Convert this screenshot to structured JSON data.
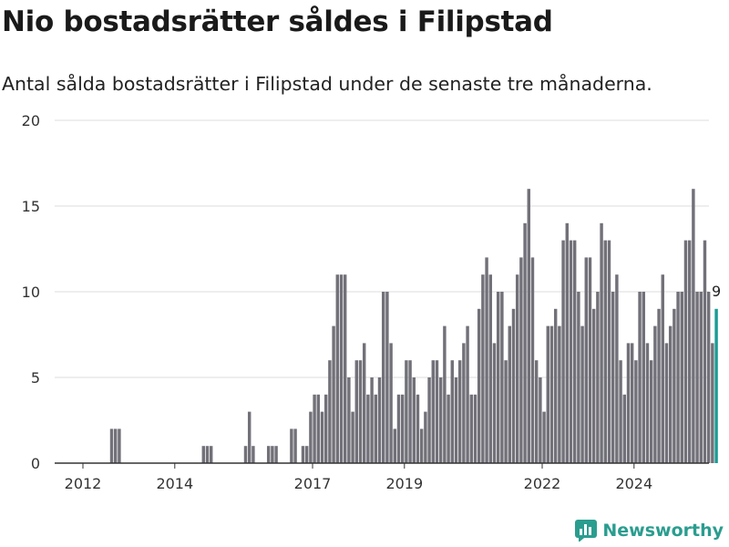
{
  "title": "Nio bostadsrätter såldes i Filipstad",
  "subtitle": "Antal sålda bostadsrätter i Filipstad under de senaste tre månaderna.",
  "brand": "Newsworthy",
  "colors": {
    "bar": "#727179",
    "highlight": "#1a9c95",
    "grid": "#dddddd",
    "axis": "#333333",
    "brand": "#2a9d8f"
  },
  "chart_data": {
    "type": "bar",
    "ylim": [
      0,
      20
    ],
    "y_ticks": [
      "0",
      "5",
      "10",
      "15",
      "20"
    ],
    "x_ticks": [
      "2012",
      "2014",
      "2017",
      "2019",
      "2022",
      "2024"
    ],
    "x_tick_positions": [
      2012,
      2014,
      2017,
      2019,
      2022,
      2024
    ],
    "x_start": 2011.6667,
    "period_length": 0.08333,
    "grid": true,
    "last_value_label": "9",
    "values": [
      0,
      0,
      0,
      0,
      0,
      0,
      0,
      0,
      0,
      0,
      0,
      2,
      2,
      2,
      0,
      0,
      0,
      0,
      0,
      0,
      0,
      0,
      0,
      0,
      0,
      0,
      0,
      0,
      0,
      0,
      0,
      0,
      0,
      0,
      0,
      1,
      1,
      1,
      0,
      0,
      0,
      0,
      0,
      0,
      0,
      0,
      1,
      3,
      1,
      0,
      0,
      0,
      1,
      1,
      1,
      0,
      0,
      0,
      2,
      2,
      0,
      1,
      1,
      3,
      4,
      4,
      3,
      4,
      6,
      8,
      11,
      11,
      11,
      5,
      3,
      6,
      6,
      7,
      4,
      5,
      4,
      5,
      10,
      10,
      7,
      2,
      4,
      4,
      6,
      6,
      5,
      4,
      2,
      3,
      5,
      6,
      6,
      5,
      8,
      4,
      6,
      5,
      6,
      7,
      8,
      4,
      4,
      9,
      11,
      12,
      11,
      7,
      10,
      10,
      6,
      8,
      9,
      11,
      12,
      14,
      16,
      12,
      6,
      5,
      3,
      8,
      8,
      9,
      8,
      13,
      14,
      13,
      13,
      10,
      8,
      12,
      12,
      9,
      10,
      14,
      13,
      13,
      10,
      11,
      6,
      4,
      7,
      7,
      6,
      10,
      10,
      7,
      6,
      8,
      9,
      11,
      7,
      8,
      9,
      10,
      10,
      13,
      13,
      16,
      10,
      10,
      13,
      10,
      7,
      9
    ]
  }
}
